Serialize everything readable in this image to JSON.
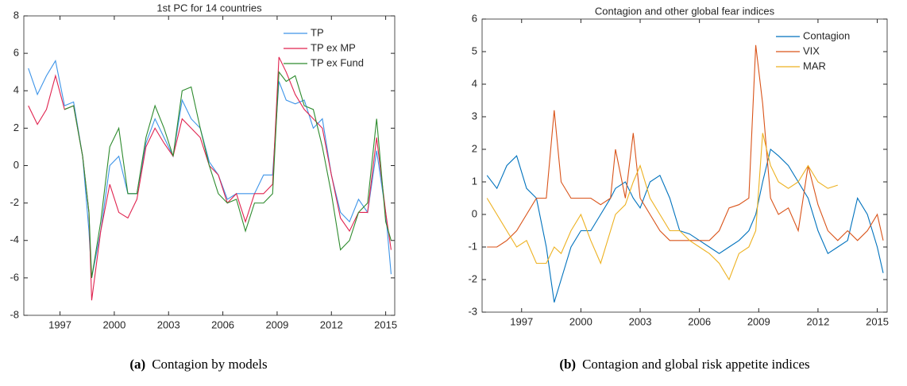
{
  "chart_data": [
    {
      "type": "line",
      "title": "1st PC for 14 countries",
      "caption_label": "(a)",
      "caption": "Contagion by models",
      "x": [
        1995.25,
        1995.75,
        1996.25,
        1996.75,
        1997.25,
        1997.75,
        1998.25,
        1998.6,
        1998.75,
        1999.25,
        1999.75,
        2000.25,
        2000.75,
        2001.25,
        2001.75,
        2002.25,
        2002.75,
        2003.25,
        2003.75,
        2004.25,
        2004.75,
        2005.25,
        2005.75,
        2006.25,
        2006.75,
        2007.25,
        2007.75,
        2008.25,
        2008.75,
        2009.1,
        2009.5,
        2010.0,
        2010.5,
        2011.0,
        2011.5,
        2012.0,
        2012.5,
        2013.0,
        2013.5,
        2014.0,
        2014.5,
        2015.0,
        2015.3
      ],
      "series": [
        {
          "name": "TP",
          "color": "#3d94e8",
          "values": [
            5.2,
            3.8,
            4.8,
            5.6,
            3.2,
            3.4,
            0.5,
            -3.5,
            -6.0,
            -3.5,
            0.0,
            0.5,
            -1.5,
            -1.5,
            1.2,
            2.5,
            1.5,
            0.5,
            3.5,
            2.5,
            2.0,
            0.2,
            -0.5,
            -1.8,
            -1.5,
            -1.5,
            -1.5,
            -0.5,
            -0.5,
            4.5,
            3.5,
            3.3,
            3.5,
            2.0,
            2.5,
            -0.5,
            -2.5,
            -3.0,
            -1.8,
            -2.5,
            0.8,
            -2.5,
            -5.8
          ]
        },
        {
          "name": "TP ex MP",
          "color": "#e0234f",
          "values": [
            3.2,
            2.2,
            3.0,
            4.8,
            3.0,
            3.2,
            0.5,
            -2.5,
            -7.2,
            -3.5,
            -1.0,
            -2.5,
            -2.8,
            -1.8,
            1.0,
            2.0,
            1.2,
            0.5,
            2.5,
            2.0,
            1.5,
            0.0,
            -0.5,
            -2.0,
            -1.5,
            -3.0,
            -1.5,
            -1.5,
            -1.0,
            5.8,
            5.0,
            3.8,
            3.0,
            2.5,
            2.0,
            -0.5,
            -2.8,
            -3.5,
            -2.5,
            -2.5,
            1.5,
            -2.5,
            -4.5
          ]
        },
        {
          "name": "TP ex Fund",
          "color": "#2e8b2e",
          "values": [
            null,
            null,
            null,
            null,
            3.0,
            3.2,
            0.5,
            -2.5,
            -6.0,
            -3.0,
            1.0,
            2.0,
            -1.5,
            -1.5,
            1.5,
            3.2,
            2.0,
            0.5,
            4.0,
            4.2,
            2.0,
            0.0,
            -1.5,
            -2.0,
            -1.8,
            -3.5,
            -2.0,
            -2.0,
            -1.5,
            5.0,
            4.5,
            4.8,
            3.2,
            3.0,
            1.0,
            -1.5,
            -4.5,
            -4.0,
            -2.5,
            -2.0,
            2.5,
            -3.0,
            -4.0
          ]
        }
      ],
      "xlim": [
        1995.0,
        2015.5
      ],
      "xticks": [
        1997,
        2000,
        2003,
        2006,
        2009,
        2012,
        2015
      ],
      "ylim": [
        -8,
        8
      ],
      "yticks": [
        -8,
        -6,
        -4,
        -2,
        0,
        2,
        4,
        6,
        8
      ],
      "legend": "upper right",
      "grid": false
    },
    {
      "type": "line",
      "title": "Contagion and other global fear indices",
      "caption_label": "(b)",
      "caption": "Contagion and global risk appetite indices",
      "x": [
        1995.25,
        1995.75,
        1996.25,
        1996.75,
        1997.25,
        1997.75,
        1998.25,
        1998.65,
        1999.0,
        1999.5,
        2000.0,
        2000.5,
        2001.0,
        2001.5,
        2001.75,
        2002.25,
        2002.65,
        2003.0,
        2003.5,
        2004.0,
        2004.5,
        2005.0,
        2005.5,
        2006.0,
        2006.5,
        2007.0,
        2007.5,
        2008.0,
        2008.5,
        2008.85,
        2009.2,
        2009.6,
        2010.0,
        2010.5,
        2011.0,
        2011.5,
        2012.0,
        2012.5,
        2013.0,
        2013.5,
        2014.0,
        2014.5,
        2015.0,
        2015.3
      ],
      "series": [
        {
          "name": "Contagion",
          "color": "#0072bd",
          "values": [
            1.2,
            0.8,
            1.5,
            1.8,
            0.8,
            0.5,
            -1.0,
            -2.7,
            -2.0,
            -1.0,
            -0.5,
            -0.5,
            0.0,
            0.5,
            0.8,
            1.0,
            0.5,
            0.2,
            1.0,
            1.2,
            0.5,
            -0.5,
            -0.6,
            -0.8,
            -1.0,
            -1.2,
            -1.0,
            -0.8,
            -0.5,
            0.0,
            1.0,
            2.0,
            1.8,
            1.5,
            1.0,
            0.5,
            -0.5,
            -1.2,
            -1.0,
            -0.8,
            0.5,
            0.0,
            -1.0,
            -1.8
          ]
        },
        {
          "name": "VIX",
          "color": "#d95319",
          "values": [
            -1.0,
            -1.0,
            -0.8,
            -0.5,
            0.0,
            0.5,
            0.5,
            3.2,
            1.0,
            0.5,
            0.5,
            0.5,
            0.3,
            0.5,
            2.0,
            0.5,
            2.5,
            0.5,
            0.0,
            -0.5,
            -0.8,
            -0.8,
            -0.8,
            -0.8,
            -0.8,
            -0.5,
            0.2,
            0.3,
            0.5,
            5.2,
            3.4,
            0.5,
            0.0,
            0.2,
            -0.5,
            1.5,
            0.3,
            -0.5,
            -0.8,
            -0.5,
            -0.8,
            -0.5,
            0.0,
            -0.8
          ]
        },
        {
          "name": "MAR",
          "color": "#edb120",
          "values": [
            0.5,
            0.0,
            -0.5,
            -1.0,
            -0.8,
            -1.5,
            -1.5,
            -1.0,
            -1.2,
            -0.5,
            0.0,
            -0.8,
            -1.5,
            -0.5,
            0.0,
            0.3,
            1.0,
            1.5,
            0.5,
            0.0,
            -0.5,
            -0.5,
            -0.8,
            -1.0,
            -1.2,
            -1.5,
            -2.0,
            -1.2,
            -1.0,
            -0.5,
            2.5,
            1.5,
            1.0,
            0.8,
            1.0,
            1.5,
            1.0,
            0.8,
            0.9,
            null,
            null,
            null,
            null,
            null
          ]
        }
      ],
      "xlim": [
        1995.0,
        2015.5
      ],
      "xticks": [
        1997,
        2000,
        2003,
        2006,
        2009,
        2012,
        2015
      ],
      "ylim": [
        -3,
        6
      ],
      "yticks": [
        -3,
        -2,
        -1,
        0,
        1,
        2,
        3,
        4,
        5,
        6
      ],
      "legend": "upper right",
      "grid": false
    }
  ]
}
